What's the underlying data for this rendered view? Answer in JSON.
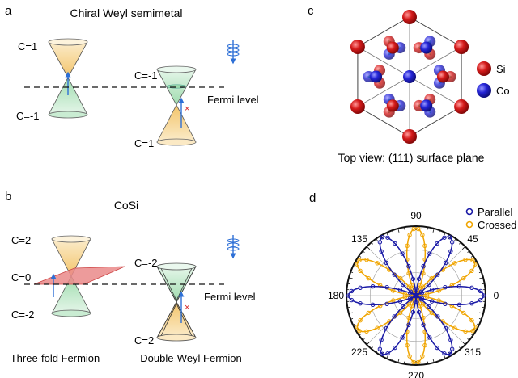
{
  "panel_a": {
    "letter": "a",
    "title": "Chiral Weyl semimetal",
    "labels": {
      "c1_top": "C=1",
      "c1_bottom": "C=-1",
      "c2_top": "C=-1",
      "c2_bottom": "C=1",
      "fermi": "Fermi level"
    }
  },
  "panel_b": {
    "letter": "b",
    "title": "CoSi",
    "labels": {
      "c1_top": "C=2",
      "c1_mid": "C=0",
      "c1_bottom": "C=-2",
      "c2_top": "C=-2",
      "c2_bottom": "C=2",
      "fermi": "Fermi level"
    },
    "caption_left": "Three-fold Fermion",
    "caption_right": "Double-Weyl Fermion"
  },
  "panel_c": {
    "letter": "c",
    "legend": {
      "si": "Si",
      "co": "Co"
    },
    "caption": "Top view: (111) surface plane"
  },
  "panel_d": {
    "letter": "d",
    "legend": {
      "parallel": "Parallel",
      "crossed": "Crossed"
    },
    "colors": {
      "parallel": "#1a1aa6",
      "crossed": "#f0a500"
    },
    "chart_data": {
      "type": "polar",
      "angle_ticks": [
        "0",
        "45",
        "90",
        "135",
        "180",
        "225",
        "270",
        "315"
      ],
      "series": [
        {
          "name": "Parallel",
          "petals": 6,
          "petal_axes_deg": [
            0,
            60,
            120,
            180,
            240,
            300
          ]
        },
        {
          "name": "Crossed",
          "petals": 6,
          "petal_axes_deg": [
            30,
            90,
            150,
            210,
            270,
            330
          ]
        }
      ]
    }
  },
  "colors": {
    "si": "#d01818",
    "co": "#2a2ad0",
    "bond": "#1aa35a",
    "cone_top": "#f7d99a",
    "cone_bottom": "#bfe8c8",
    "plane": "#ea8a8a",
    "arrow": "#2d6fd6",
    "cross": "#d62020"
  }
}
